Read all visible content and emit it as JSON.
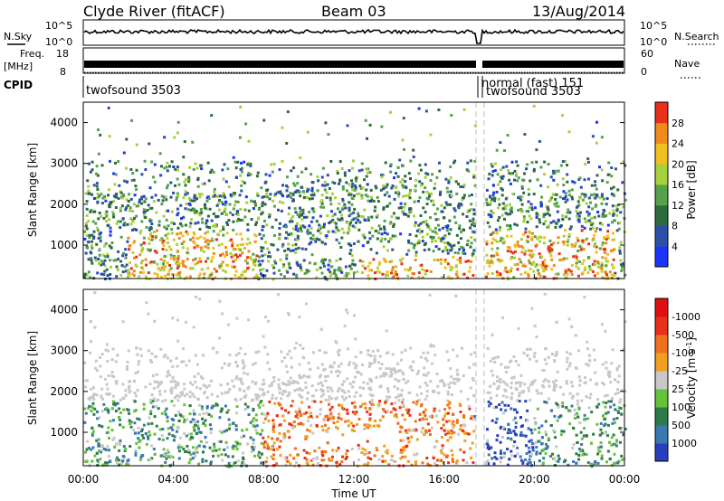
{
  "header": {
    "station": "Clyde River (fitACF)",
    "beam": "Beam 03",
    "date": "13/Aug/2014"
  },
  "status_panels": {
    "nsky_label": "N.Sky",
    "nsky_top_tick": "10^5",
    "nsky_bottom_tick": "10^0",
    "nsearch_label": "N.Search",
    "nsearch_top_tick": "10^5",
    "nsearch_bottom_tick": "10^0",
    "freq_label": "Freq.",
    "freq_unit": "[MHz]",
    "freq_ticks": [
      "18",
      "8"
    ],
    "nave_label": "Nave",
    "nave_ticks": [
      "60",
      "0"
    ],
    "cpid_label": "CPID",
    "cpid_segments": [
      {
        "name": "twofsound 3503",
        "start": "00:00",
        "end": "17:30"
      },
      {
        "name": "normal (fast) 151",
        "start": "17:30",
        "end": "17:35"
      },
      {
        "name": "twofsound 3503",
        "start": "17:35",
        "end": "24:00"
      }
    ]
  },
  "chart_data": [
    {
      "type": "heatmap",
      "title": "",
      "xlabel": "",
      "ylabel": "Slant Range [km]",
      "xlim": [
        "00:00",
        "24:00"
      ],
      "ylim": [
        180,
        4500
      ],
      "yticks": [
        "1000",
        "2000",
        "3000",
        "4000"
      ],
      "colorbar": {
        "label": "Power [dB]",
        "range": [
          0,
          30
        ],
        "ticks": [
          "4",
          "8",
          "12",
          "16",
          "20",
          "24",
          "28"
        ],
        "colors": [
          "#1a33ff",
          "#2c4fa8",
          "#2e6b3c",
          "#55a24a",
          "#a5d13a",
          "#f0c020",
          "#f08a1a",
          "#e8301a"
        ]
      }
    },
    {
      "type": "heatmap",
      "title": "",
      "xlabel": "Time UT",
      "ylabel": "Slant Range [km]",
      "xlim": [
        "00:00",
        "24:00"
      ],
      "ylim": [
        180,
        4500
      ],
      "xticks": [
        "00:00",
        "04:00",
        "08:00",
        "12:00",
        "16:00",
        "20:00",
        "00:00"
      ],
      "yticks": [
        "1000",
        "2000",
        "3000",
        "4000"
      ],
      "colorbar": {
        "label": "Velocity [m s-1]",
        "label_main": "Velocity",
        "label_unit": "[m s",
        "label_sup": "-1",
        "label_close": "]",
        "ticks": [
          "1000",
          "500",
          "100",
          "25",
          "-25",
          "-100",
          "-500",
          "-1000"
        ],
        "colors": [
          "#2a3fbf",
          "#3a78b0",
          "#2f7a4a",
          "#66c23a",
          "#c8c8c8",
          "#f0a020",
          "#f07020",
          "#e8301a",
          "#e01010"
        ]
      }
    }
  ]
}
